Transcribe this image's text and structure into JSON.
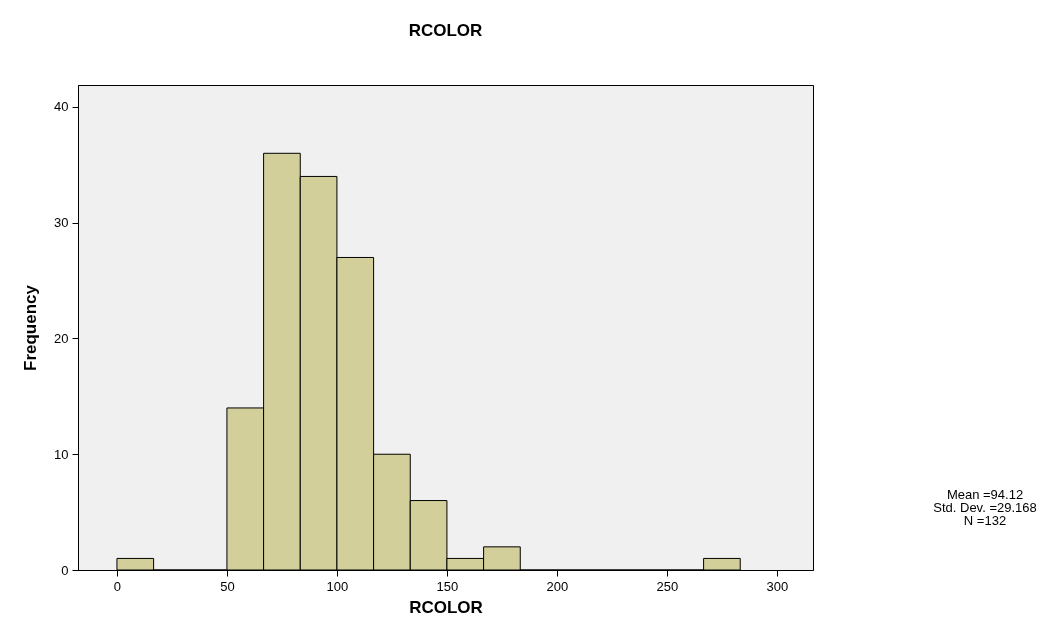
{
  "chart_data": {
    "type": "histogram",
    "title": "RCOLOR",
    "xlabel": "RCOLOR",
    "ylabel": "Frequency",
    "bins": [
      0,
      16.67,
      33.33,
      50,
      66.67,
      83.33,
      100,
      116.67,
      133.33,
      150,
      166.67,
      183.33,
      200,
      216.67,
      233.33,
      250,
      266.67,
      283.33
    ],
    "values": [
      1,
      0,
      0,
      14,
      36,
      34,
      27,
      10,
      6,
      1,
      2,
      0,
      0,
      0,
      0,
      0,
      1
    ],
    "color": "#d3cf9b",
    "xlim": [
      -17.7,
      316.4
    ],
    "ylim": [
      0,
      41.9
    ],
    "xticks": [
      0,
      50,
      100,
      150,
      200,
      250,
      300
    ],
    "yticks": [
      0,
      10,
      20,
      30,
      40
    ],
    "annotations": [
      "Mean =94.12",
      "Std. Dev. =29.168",
      "N =132"
    ]
  }
}
